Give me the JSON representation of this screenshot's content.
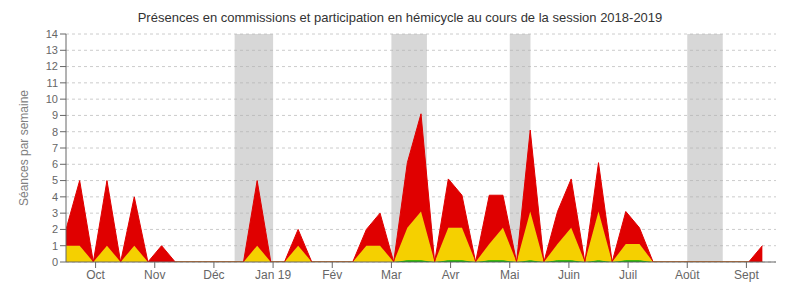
{
  "chart_data": {
    "type": "area",
    "stacked": true,
    "grid": true,
    "title": "Présences en commissions et participation en hémicycle au cours de la session 2018-2019",
    "y_label": "Séances par semaine",
    "x": [
      0,
      1,
      2,
      3,
      4,
      5,
      6,
      7,
      8,
      9,
      10,
      11,
      12,
      13,
      14,
      15,
      16,
      17,
      18,
      19,
      20,
      21,
      22,
      23,
      24,
      25,
      26,
      27,
      28,
      29,
      30,
      31,
      32,
      33,
      34,
      35,
      36,
      37,
      38,
      39,
      40,
      41,
      42,
      43,
      44,
      45,
      46,
      47,
      48,
      49,
      50,
      51
    ],
    "xlim": [
      0,
      52
    ],
    "xticks": [
      {
        "value": 2.1666666666666665,
        "label": "Oct"
      },
      {
        "value": 6.5,
        "label": "Nov"
      },
      {
        "value": 10.833333333333334,
        "label": "Déc"
      },
      {
        "value": 15.166666666666666,
        "label": "Jan 19"
      },
      {
        "value": 19.5,
        "label": "Fév"
      },
      {
        "value": 23.833333333333332,
        "label": "Mar"
      },
      {
        "value": 28.166666666666668,
        "label": "Avr"
      },
      {
        "value": 32.5,
        "label": "Mai"
      },
      {
        "value": 36.833333333333336,
        "label": "Juin"
      },
      {
        "value": 41.166666666666664,
        "label": "Juil"
      },
      {
        "value": 45.5,
        "label": "Août"
      },
      {
        "value": 49.833333333333336,
        "label": "Sept"
      }
    ],
    "ylim": [
      0,
      14
    ],
    "yticks": [
      0,
      1,
      2,
      3,
      4,
      5,
      6,
      7,
      8,
      9,
      10,
      11,
      12,
      13,
      14
    ],
    "series": [
      {
        "color": "#00b000",
        "values": [
          0,
          0,
          0,
          0,
          0,
          0,
          0,
          0,
          0,
          0,
          0,
          0,
          0,
          0,
          0,
          0,
          0,
          0,
          0,
          0,
          0,
          0,
          0,
          0,
          0,
          0.1,
          0.1,
          0,
          0.1,
          0.1,
          0,
          0.1,
          0.1,
          0,
          0.1,
          0,
          0.1,
          0.1,
          0,
          0.1,
          0,
          0.1,
          0.1,
          0,
          0,
          0,
          0,
          0,
          0,
          0,
          0,
          0
        ]
      },
      {
        "color": "#f5d000",
        "values": [
          1,
          1,
          0,
          1,
          0,
          1,
          0,
          0,
          0,
          0,
          0,
          0,
          0,
          0,
          1,
          0,
          0,
          1,
          0,
          0,
          0,
          0,
          1,
          1,
          0,
          2,
          3,
          0,
          2,
          2,
          0,
          1,
          2,
          0,
          3,
          0,
          1,
          2,
          0,
          3,
          0,
          1,
          1,
          0,
          0,
          0,
          0,
          0,
          0,
          0,
          0,
          0
        ]
      },
      {
        "color": "#e00000",
        "values": [
          1,
          4,
          0,
          4,
          0,
          3,
          0,
          1,
          0,
          0,
          0,
          0,
          0,
          0,
          4,
          0,
          0,
          1,
          0,
          0,
          0,
          0,
          1,
          2,
          0,
          4,
          6,
          0,
          3,
          2,
          0,
          3,
          2,
          0,
          5,
          0,
          2,
          3,
          0,
          3,
          0,
          2,
          1,
          0,
          0,
          0,
          0,
          0,
          0,
          0,
          0,
          1
        ]
      }
    ],
    "bands": [
      {
        "from": 12.35,
        "to": 15.166666666666666,
        "color": "#b0b0b0"
      },
      {
        "from": 23.833333333333332,
        "to": 26.433333333333334,
        "color": "#b0b0b0"
      },
      {
        "from": 32.5,
        "to": 34.016666666666666,
        "color": "#b0b0b0"
      },
      {
        "from": 45.5,
        "to": 48.1,
        "color": "#b0b0b0"
      }
    ]
  }
}
